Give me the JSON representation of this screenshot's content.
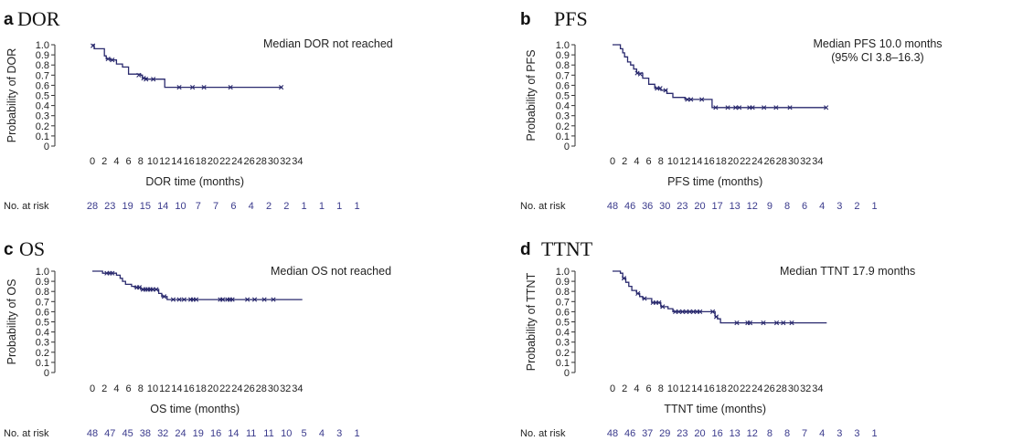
{
  "chart_data": [
    {
      "type": "line",
      "letter": "a",
      "name": "DOR",
      "xlabel": "DOR time (months)",
      "ylabel": "Probability of DOR",
      "xlim": [
        0,
        34
      ],
      "ylim": [
        0,
        1.0
      ],
      "xticks": [
        "0",
        "2",
        "4",
        "6",
        "8",
        "10",
        "12",
        "14",
        "16",
        "18",
        "20",
        "22",
        "24",
        "26",
        "28",
        "30",
        "32",
        "34"
      ],
      "yticks": [
        "0",
        "0.1",
        "0.2",
        "0.3",
        "0.4",
        "0.5",
        "0.6",
        "0.7",
        "0.8",
        "0.9",
        "1.0"
      ],
      "median_lines": [
        "Median DOR not reached"
      ],
      "risk_label": "No. at risk",
      "at_risk": [
        "28",
        "23",
        "19",
        "15",
        "14",
        "10",
        "7",
        "7",
        "6",
        "4",
        "2",
        "2",
        "1",
        "1",
        "1",
        "1"
      ],
      "steps": [
        [
          0,
          1.0
        ],
        [
          0.3,
          0.96
        ],
        [
          2,
          0.89
        ],
        [
          2.3,
          0.86
        ],
        [
          3,
          0.85
        ],
        [
          4,
          0.81
        ],
        [
          5,
          0.78
        ],
        [
          6,
          0.71
        ],
        [
          8,
          0.7
        ],
        [
          8.3,
          0.67
        ],
        [
          9,
          0.66
        ],
        [
          12,
          0.58
        ],
        [
          31.5,
          0.58
        ]
      ],
      "censors": [
        [
          0.1,
          0.99
        ],
        [
          2.6,
          0.86
        ],
        [
          3.3,
          0.85
        ],
        [
          7.7,
          0.7
        ],
        [
          8.5,
          0.67
        ],
        [
          8.9,
          0.66
        ],
        [
          10.1,
          0.66
        ],
        [
          14.4,
          0.58
        ],
        [
          16.6,
          0.58
        ],
        [
          18.5,
          0.58
        ],
        [
          22.9,
          0.58
        ],
        [
          31.3,
          0.58
        ]
      ]
    },
    {
      "type": "line",
      "letter": "b",
      "name": "PFS",
      "xlabel": "PFS time (months)",
      "ylabel": "Probability of PFS",
      "xlim": [
        0,
        34
      ],
      "ylim": [
        0,
        1.0
      ],
      "xticks": [
        "0",
        "2",
        "4",
        "6",
        "8",
        "10",
        "12",
        "14",
        "16",
        "18",
        "20",
        "22",
        "24",
        "26",
        "28",
        "30",
        "32",
        "34"
      ],
      "yticks": [
        "0",
        "0.1",
        "0.2",
        "0.3",
        "0.4",
        "0.5",
        "0.6",
        "0.7",
        "0.8",
        "0.9",
        "1.0"
      ],
      "median_lines": [
        "Median PFS 10.0 months",
        "(95% CI 3.8–16.3)"
      ],
      "risk_label": "No. at risk",
      "at_risk": [
        "48",
        "46",
        "36",
        "30",
        "23",
        "20",
        "17",
        "13",
        "12",
        "9",
        "8",
        "6",
        "4",
        "3",
        "2",
        "1"
      ],
      "steps": [
        [
          0,
          1.0
        ],
        [
          1.3,
          0.96
        ],
        [
          1.7,
          0.92
        ],
        [
          2,
          0.88
        ],
        [
          2.5,
          0.83
        ],
        [
          3,
          0.8
        ],
        [
          3.5,
          0.76
        ],
        [
          4,
          0.72
        ],
        [
          5,
          0.67
        ],
        [
          6,
          0.61
        ],
        [
          7,
          0.57
        ],
        [
          8,
          0.55
        ],
        [
          9,
          0.52
        ],
        [
          10,
          0.48
        ],
        [
          12,
          0.46
        ],
        [
          16.5,
          0.38
        ],
        [
          35.5,
          0.38
        ]
      ],
      "censors": [
        [
          4.1,
          0.72
        ],
        [
          4.6,
          0.71
        ],
        [
          7.4,
          0.57
        ],
        [
          7.9,
          0.57
        ],
        [
          8.8,
          0.55
        ],
        [
          12.4,
          0.46
        ],
        [
          13.0,
          0.46
        ],
        [
          14.8,
          0.46
        ],
        [
          17.1,
          0.38
        ],
        [
          19.1,
          0.38
        ],
        [
          20.4,
          0.38
        ],
        [
          21.0,
          0.38
        ],
        [
          22.7,
          0.38
        ],
        [
          23.2,
          0.38
        ],
        [
          25.1,
          0.38
        ],
        [
          27.1,
          0.38
        ],
        [
          29.4,
          0.38
        ],
        [
          35.4,
          0.38
        ]
      ]
    },
    {
      "type": "line",
      "letter": "c",
      "name": "OS",
      "xlabel": "OS time (months)",
      "ylabel": "Probability of OS",
      "xlim": [
        0,
        34
      ],
      "ylim": [
        0,
        1.0
      ],
      "xticks": [
        "0",
        "2",
        "4",
        "6",
        "8",
        "10",
        "12",
        "14",
        "16",
        "18",
        "20",
        "22",
        "24",
        "26",
        "28",
        "30",
        "32",
        "34"
      ],
      "yticks": [
        "0",
        "0.1",
        "0.2",
        "0.3",
        "0.4",
        "0.5",
        "0.6",
        "0.7",
        "0.8",
        "0.9",
        "1.0"
      ],
      "median_lines": [
        "Median OS not reached"
      ],
      "risk_label": "No. at risk",
      "at_risk": [
        "48",
        "47",
        "45",
        "38",
        "32",
        "24",
        "19",
        "16",
        "14",
        "11",
        "11",
        "10",
        "5",
        "4",
        "3",
        "1"
      ],
      "steps": [
        [
          0,
          1.0
        ],
        [
          1.7,
          0.98
        ],
        [
          4,
          0.96
        ],
        [
          4.6,
          0.93
        ],
        [
          5,
          0.9
        ],
        [
          5.5,
          0.87
        ],
        [
          6.5,
          0.85
        ],
        [
          7,
          0.84
        ],
        [
          8,
          0.82
        ],
        [
          11,
          0.78
        ],
        [
          11.5,
          0.75
        ],
        [
          12.4,
          0.72
        ],
        [
          34.8,
          0.72
        ]
      ],
      "censors": [
        [
          2.4,
          0.98
        ],
        [
          2.9,
          0.98
        ],
        [
          3.3,
          0.98
        ],
        [
          7.4,
          0.84
        ],
        [
          7.8,
          0.84
        ],
        [
          8.4,
          0.82
        ],
        [
          8.8,
          0.82
        ],
        [
          9.2,
          0.82
        ],
        [
          9.6,
          0.82
        ],
        [
          10.0,
          0.82
        ],
        [
          10.6,
          0.82
        ],
        [
          11.9,
          0.75
        ],
        [
          13.4,
          0.72
        ],
        [
          14.4,
          0.72
        ],
        [
          15.2,
          0.72
        ],
        [
          16.3,
          0.72
        ],
        [
          16.7,
          0.72
        ],
        [
          17.2,
          0.72
        ],
        [
          21.2,
          0.72
        ],
        [
          21.6,
          0.72
        ],
        [
          22.4,
          0.72
        ],
        [
          22.8,
          0.72
        ],
        [
          23.2,
          0.72
        ],
        [
          25.7,
          0.72
        ],
        [
          26.9,
          0.72
        ],
        [
          28.5,
          0.72
        ],
        [
          30.0,
          0.72
        ]
      ]
    },
    {
      "type": "line",
      "letter": "d",
      "name": "TTNT",
      "xlabel": "TTNT time (months)",
      "ylabel": "Probability of TTNT",
      "xlim": [
        0,
        34
      ],
      "ylim": [
        0,
        1.0
      ],
      "xticks": [
        "0",
        "2",
        "4",
        "6",
        "8",
        "10",
        "12",
        "14",
        "16",
        "18",
        "20",
        "22",
        "24",
        "26",
        "28",
        "30",
        "32",
        "34"
      ],
      "yticks": [
        "0",
        "0.1",
        "0.2",
        "0.3",
        "0.4",
        "0.5",
        "0.6",
        "0.7",
        "0.8",
        "0.9",
        "1.0"
      ],
      "median_lines": [
        "Median TTNT 17.9 months"
      ],
      "risk_label": "No. at risk",
      "at_risk": [
        "48",
        "46",
        "37",
        "29",
        "23",
        "20",
        "16",
        "13",
        "12",
        "8",
        "8",
        "7",
        "4",
        "3",
        "3",
        "1"
      ],
      "steps": [
        [
          0,
          1.0
        ],
        [
          1.3,
          0.98
        ],
        [
          1.7,
          0.93
        ],
        [
          2.2,
          0.89
        ],
        [
          2.7,
          0.85
        ],
        [
          3.2,
          0.81
        ],
        [
          4,
          0.78
        ],
        [
          4.5,
          0.75
        ],
        [
          5,
          0.73
        ],
        [
          6.5,
          0.69
        ],
        [
          8,
          0.65
        ],
        [
          9.2,
          0.63
        ],
        [
          10,
          0.6
        ],
        [
          17,
          0.55
        ],
        [
          17.4,
          0.53
        ],
        [
          17.9,
          0.49
        ],
        [
          35.5,
          0.49
        ]
      ],
      "censors": [
        [
          1.9,
          0.93
        ],
        [
          4.2,
          0.78
        ],
        [
          5.3,
          0.73
        ],
        [
          6.7,
          0.69
        ],
        [
          7.2,
          0.69
        ],
        [
          7.7,
          0.69
        ],
        [
          8.3,
          0.65
        ],
        [
          10.4,
          0.6
        ],
        [
          11.0,
          0.6
        ],
        [
          11.6,
          0.6
        ],
        [
          12.2,
          0.6
        ],
        [
          12.8,
          0.6
        ],
        [
          13.4,
          0.6
        ],
        [
          14.0,
          0.6
        ],
        [
          14.5,
          0.6
        ],
        [
          16.6,
          0.6
        ],
        [
          17.2,
          0.55
        ],
        [
          20.6,
          0.49
        ],
        [
          22.4,
          0.49
        ],
        [
          22.8,
          0.49
        ],
        [
          25.0,
          0.49
        ],
        [
          27.2,
          0.49
        ],
        [
          28.3,
          0.49
        ],
        [
          29.7,
          0.49
        ]
      ]
    }
  ]
}
